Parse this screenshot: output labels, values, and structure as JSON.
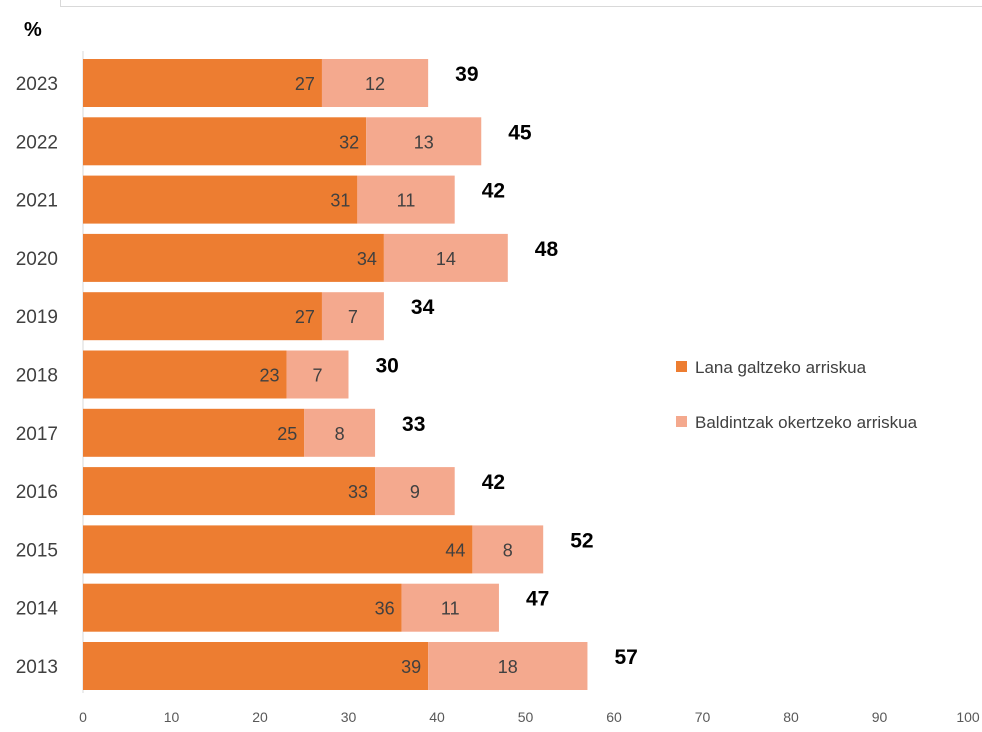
{
  "chart_data": {
    "type": "bar",
    "orientation": "horizontal",
    "stacked": true,
    "unit_label": "%",
    "categories": [
      "2023",
      "2022",
      "2021",
      "2020",
      "2019",
      "2018",
      "2017",
      "2016",
      "2015",
      "2014",
      "2013"
    ],
    "series": [
      {
        "name": "Lana galtzeko arriskua",
        "color": "#ED7D31",
        "values": [
          27,
          32,
          31,
          34,
          27,
          23,
          25,
          33,
          44,
          36,
          39
        ]
      },
      {
        "name": "Baldintzak okertzeko arriskua",
        "color": "#F4A98E",
        "values": [
          12,
          13,
          11,
          14,
          7,
          7,
          8,
          9,
          8,
          11,
          18
        ]
      }
    ],
    "totals": [
      39,
      45,
      42,
      48,
      34,
      30,
      33,
      42,
      52,
      47,
      57
    ],
    "xlim": [
      0,
      100
    ],
    "xticks": [
      0,
      10,
      20,
      30,
      40,
      50,
      60,
      70,
      80,
      90,
      100
    ],
    "legend_position": "right",
    "grid": false
  }
}
